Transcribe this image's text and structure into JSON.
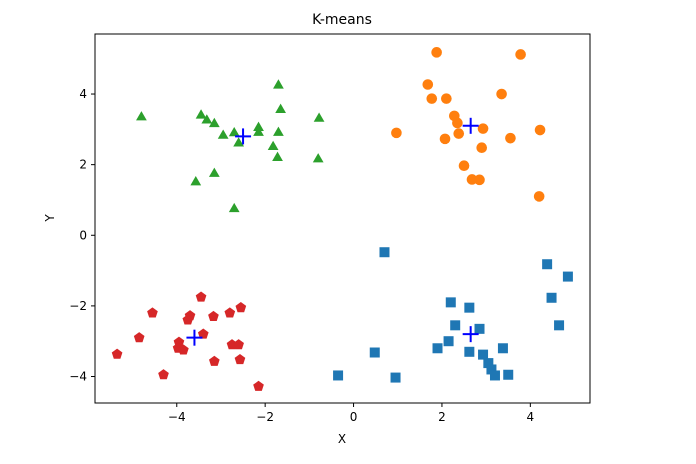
{
  "chart_data": {
    "type": "scatter",
    "title": "K-means",
    "xlabel": "X",
    "ylabel": "Y",
    "xlim": [
      -5.85,
      5.35
    ],
    "ylim": [
      -4.75,
      5.7
    ],
    "xticks": [
      -4,
      -2,
      0,
      2,
      4
    ],
    "yticks": [
      -4,
      -2,
      0,
      2,
      4
    ],
    "xtick_labels": [
      "−4",
      "−2",
      "0",
      "2",
      "4"
    ],
    "ytick_labels": [
      "−4",
      "−2",
      "0",
      "2",
      "4"
    ],
    "grid": false,
    "legend": false,
    "clusters": [
      {
        "marker": "square",
        "color": "#1f77b4",
        "points": [
          [
            0.7,
            -0.48
          ],
          [
            4.38,
            -0.82
          ],
          [
            4.85,
            -1.17
          ],
          [
            4.48,
            -1.77
          ],
          [
            2.2,
            -1.9
          ],
          [
            2.62,
            -2.05
          ],
          [
            2.3,
            -2.55
          ],
          [
            4.65,
            -2.55
          ],
          [
            2.85,
            -2.65
          ],
          [
            2.15,
            -3.0
          ],
          [
            1.9,
            -3.2
          ],
          [
            3.38,
            -3.2
          ],
          [
            0.48,
            -3.32
          ],
          [
            2.62,
            -3.3
          ],
          [
            2.93,
            -3.38
          ],
          [
            3.05,
            -3.62
          ],
          [
            3.12,
            -3.8
          ],
          [
            3.2,
            -3.97
          ],
          [
            3.5,
            -3.95
          ],
          [
            -0.35,
            -3.97
          ],
          [
            0.95,
            -4.03
          ]
        ]
      },
      {
        "marker": "circle",
        "color": "#ff7f0e",
        "points": [
          [
            1.88,
            5.18
          ],
          [
            3.78,
            5.12
          ],
          [
            1.68,
            4.27
          ],
          [
            1.77,
            3.87
          ],
          [
            2.1,
            3.87
          ],
          [
            3.35,
            4.0
          ],
          [
            2.28,
            3.38
          ],
          [
            2.35,
            3.18
          ],
          [
            2.38,
            2.88
          ],
          [
            0.97,
            2.9
          ],
          [
            2.07,
            2.73
          ],
          [
            2.93,
            3.02
          ],
          [
            4.22,
            2.98
          ],
          [
            3.55,
            2.75
          ],
          [
            2.9,
            2.48
          ],
          [
            2.5,
            1.97
          ],
          [
            2.68,
            1.58
          ],
          [
            2.85,
            1.57
          ],
          [
            4.2,
            1.1
          ]
        ]
      },
      {
        "marker": "triangle",
        "color": "#2ca02c",
        "points": [
          [
            -1.7,
            4.27
          ],
          [
            -1.65,
            3.58
          ],
          [
            -4.8,
            3.37
          ],
          [
            -3.45,
            3.42
          ],
          [
            -3.32,
            3.28
          ],
          [
            -3.15,
            3.18
          ],
          [
            -0.78,
            3.33
          ],
          [
            -2.15,
            3.07
          ],
          [
            -2.15,
            2.93
          ],
          [
            -1.7,
            2.93
          ],
          [
            -2.95,
            2.85
          ],
          [
            -2.7,
            2.92
          ],
          [
            -2.6,
            2.63
          ],
          [
            -1.82,
            2.53
          ],
          [
            -1.72,
            2.22
          ],
          [
            -0.8,
            2.18
          ],
          [
            -3.15,
            1.77
          ],
          [
            -3.57,
            1.53
          ],
          [
            -2.7,
            0.77
          ]
        ]
      },
      {
        "marker": "pentagon",
        "color": "#d62728",
        "points": [
          [
            -3.45,
            -1.75
          ],
          [
            -4.55,
            -2.2
          ],
          [
            -2.55,
            -2.05
          ],
          [
            -2.8,
            -2.2
          ],
          [
            -3.7,
            -2.28
          ],
          [
            -3.17,
            -2.3
          ],
          [
            -3.75,
            -2.4
          ],
          [
            -3.4,
            -2.8
          ],
          [
            -4.85,
            -2.9
          ],
          [
            -3.95,
            -3.03
          ],
          [
            -2.75,
            -3.1
          ],
          [
            -2.6,
            -3.1
          ],
          [
            -3.97,
            -3.2
          ],
          [
            -3.85,
            -3.25
          ],
          [
            -5.35,
            -3.37
          ],
          [
            -2.57,
            -3.52
          ],
          [
            -3.15,
            -3.57
          ],
          [
            -4.3,
            -3.95
          ],
          [
            -2.15,
            -4.28
          ]
        ]
      }
    ],
    "centroids": {
      "marker": "plus",
      "color": "#0000ff",
      "points": [
        [
          2.65,
          -2.8
        ],
        [
          2.65,
          3.1
        ],
        [
          -2.5,
          2.8
        ],
        [
          -3.6,
          -2.9
        ]
      ]
    }
  }
}
